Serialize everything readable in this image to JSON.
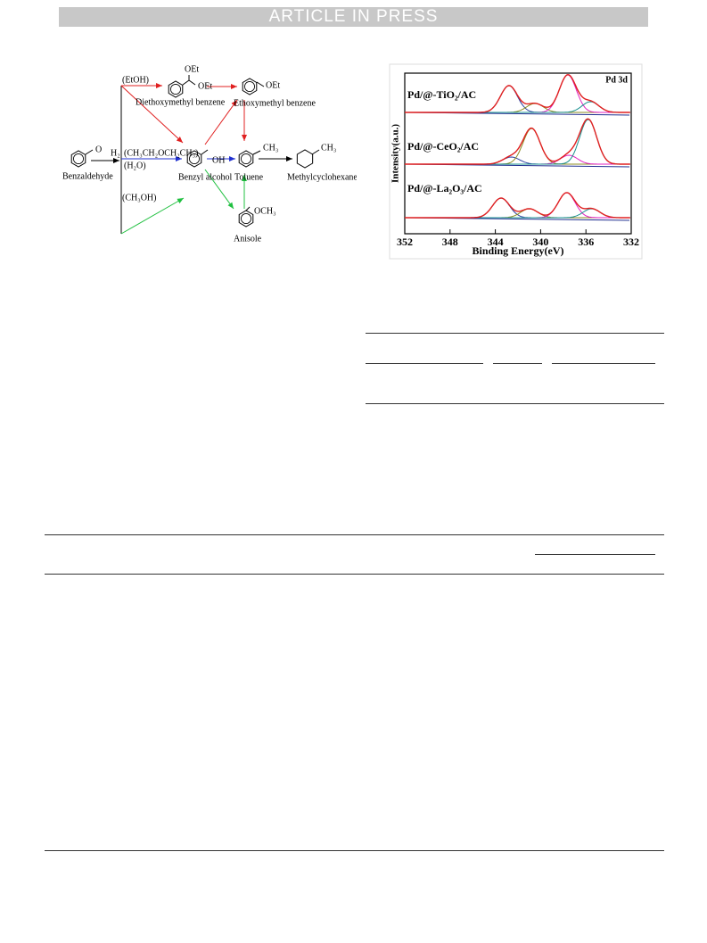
{
  "header": {
    "banner": "ARTICLE IN PRESS"
  },
  "scheme": {
    "labels": [
      "(EtOH)",
      "OEt",
      "OEt",
      "Diethoxymethyl benzene",
      "Ethoxymethyl benzene",
      "OEt",
      "O",
      "Benzaldehyde",
      "H₂",
      "(CH₃CH₂OCH₂CH₃)",
      "(H₂O)",
      "OH",
      "CH₃",
      "CH₃",
      "Benzyl alcohol",
      "Toluene",
      "Methylcyclohexane",
      "(CH₃OH)",
      "OCH₃",
      "Anisole"
    ]
  },
  "chart_data": {
    "type": "xps",
    "annotation": "Pd 3d",
    "xlabel": "Binding Energy(eV)",
    "ylabel": "Intensity(a.u.)",
    "xlim": [
      352,
      332
    ],
    "xticks": [
      352,
      348,
      344,
      340,
      336,
      332
    ],
    "component_colors": [
      "#2b3fa0",
      "#8b8b20",
      "#e020c0",
      "#1a9090"
    ],
    "envelope_color": "#e02020",
    "series": [
      {
        "name": "Pd/@-TiO₂/AC",
        "peaks": [
          342.8,
          340.5,
          337.6,
          335.6
        ],
        "values": [
          30,
          10,
          42,
          12
        ]
      },
      {
        "name": "Pd/@-CeO₂/AC",
        "peaks": [
          342.6,
          340.8,
          337.5,
          335.8
        ],
        "values": [
          8,
          40,
          10,
          50
        ]
      },
      {
        "name": "Pd/@-La₂O₃/AC",
        "peaks": [
          343.5,
          341.0,
          337.7,
          335.5
        ],
        "values": [
          22,
          10,
          28,
          10
        ]
      }
    ]
  }
}
